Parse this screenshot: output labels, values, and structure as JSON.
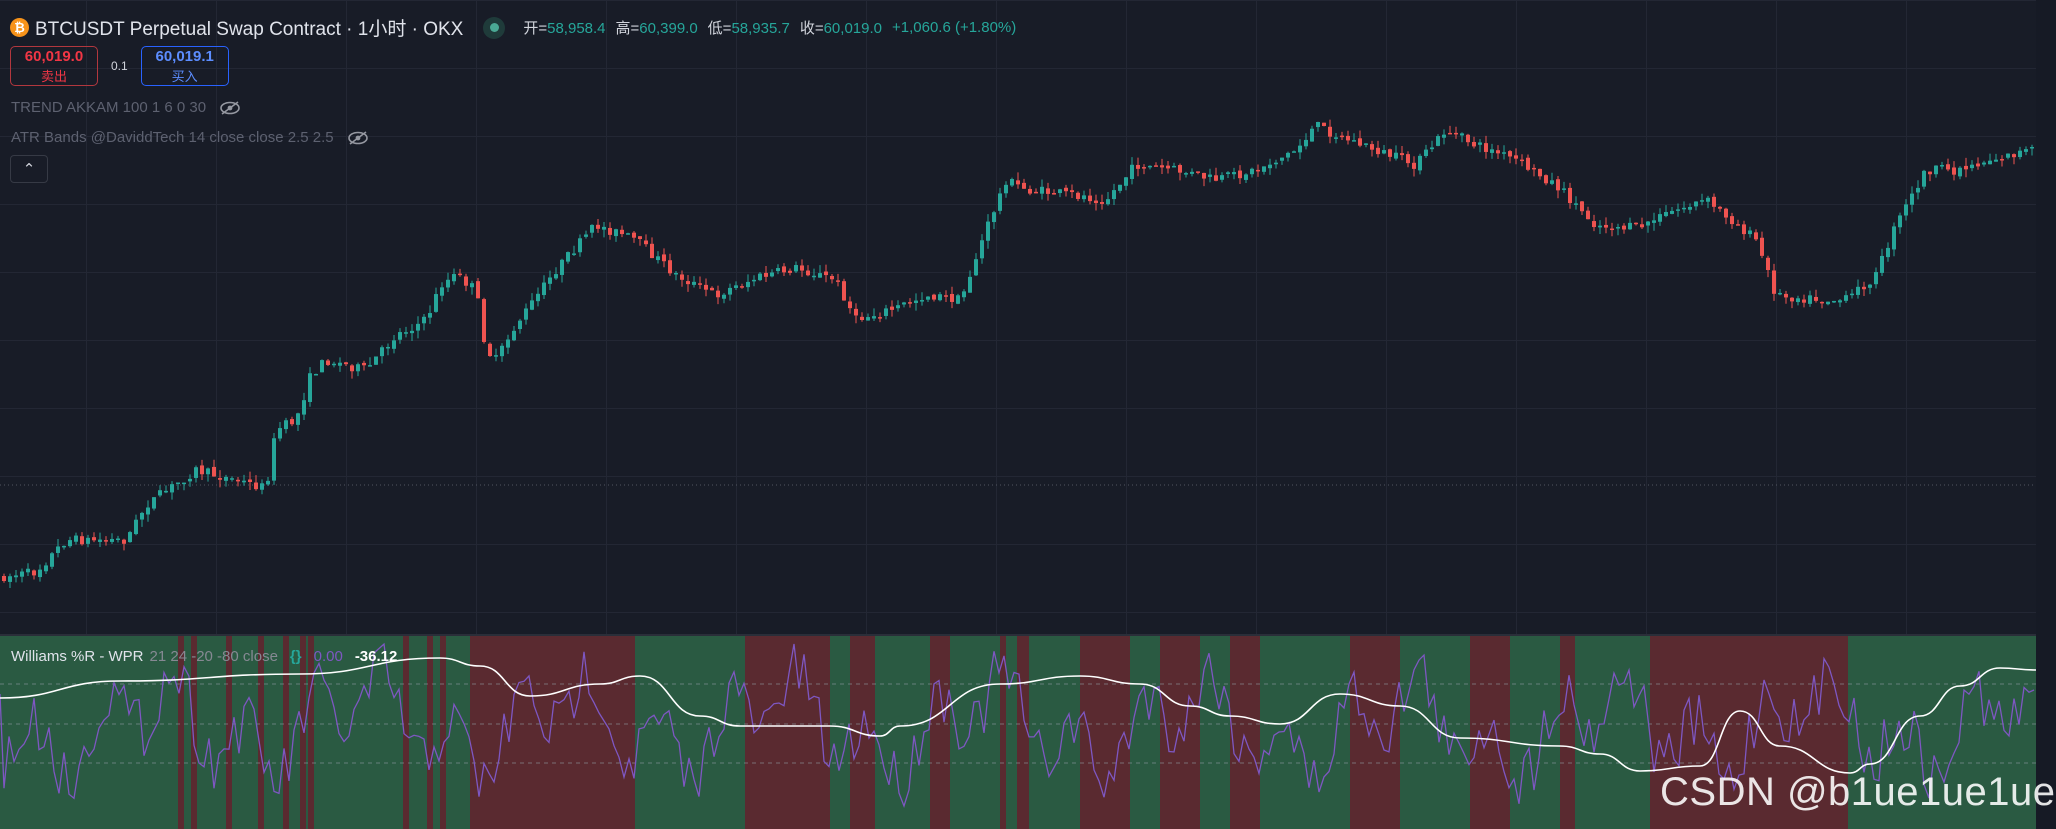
{
  "header": {
    "coin_icon": "bitcoin-icon",
    "symbol": "BTCUSDT Perpetual Swap Contract · 1小时 · OKX",
    "status_color": "#4aa894",
    "ohlc": [
      {
        "label": "开=",
        "value": "58,958.4"
      },
      {
        "label": "高=",
        "value": "60,399.0"
      },
      {
        "label": "低=",
        "value": "58,935.7"
      },
      {
        "label": "收=",
        "value": "60,019.0"
      }
    ],
    "change": "+1,060.6 (+1.80%)"
  },
  "trade": {
    "sell_price": "60,019.0",
    "sell_label": "卖出",
    "spread": "0.1",
    "buy_price": "60,019.1",
    "buy_label": "买入"
  },
  "legends": {
    "trend": "TREND AKKAM 100 1 6 0 30",
    "atr": "ATR Bands @DaviddTech 14 close close 2.5 2.5",
    "eye_icon": "eye-off-icon",
    "collapse_icon": "chevron-up-icon",
    "collapse_glyph": "⌃"
  },
  "indicator": {
    "name": "Williams %R - WPR",
    "params": "21 24 -20 -80 close",
    "braces": "{}",
    "value1": "0.00",
    "value2": "-36.12"
  },
  "colors": {
    "up": "#26a69a",
    "down": "#ef5350",
    "wpr_line": "#7e57c2",
    "signal_line": "#ffffff",
    "band_green": "#2a5a42",
    "band_red": "#5a2a30"
  },
  "watermark": "CSDN @b1ue1ue1ue"
}
